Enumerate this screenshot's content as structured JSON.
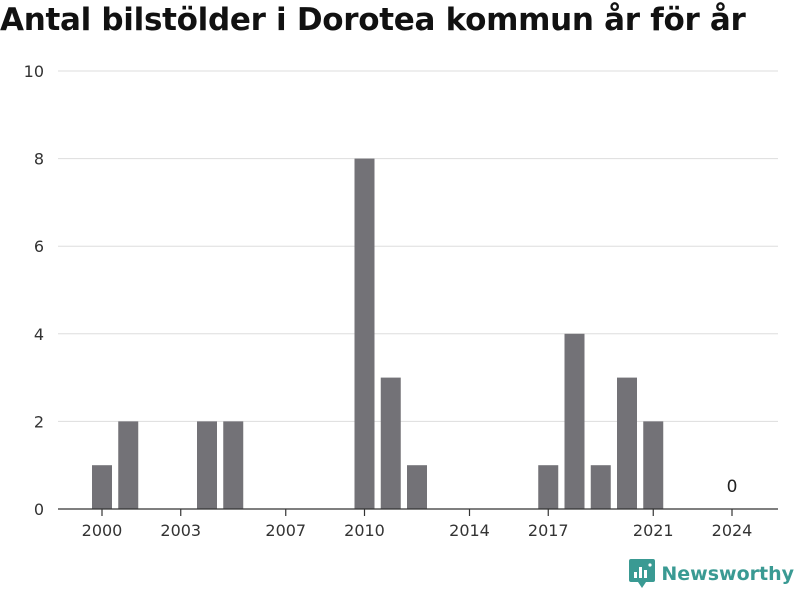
{
  "title": "Antal bilstölder i Dorotea kommun år för år",
  "brand": {
    "name": "Newsworthy",
    "color": "#3a9a93",
    "icon": "newsworthy-logo-icon"
  },
  "colors": {
    "bar": "#737277",
    "grid": "#dddddd",
    "axis": "#333333"
  },
  "chart_data": {
    "type": "bar",
    "categories": [
      2000,
      2001,
      2002,
      2003,
      2004,
      2005,
      2006,
      2007,
      2008,
      2009,
      2010,
      2011,
      2012,
      2013,
      2014,
      2015,
      2016,
      2017,
      2018,
      2019,
      2020,
      2021,
      2022,
      2023,
      2024
    ],
    "values": [
      1,
      2,
      0,
      0,
      2,
      2,
      0,
      0,
      0,
      0,
      8,
      3,
      1,
      0,
      0,
      0,
      0,
      1,
      4,
      1,
      3,
      2,
      0,
      0,
      0
    ],
    "x_ticks": [
      2000,
      2003,
      2007,
      2010,
      2014,
      2017,
      2021,
      2024
    ],
    "y_ticks": [
      0,
      2,
      4,
      6,
      8,
      10
    ],
    "ylim": [
      0,
      10
    ],
    "data_labels": [
      {
        "category": 2024,
        "text": "0"
      }
    ],
    "grid": true,
    "xlabel": "",
    "ylabel": ""
  }
}
